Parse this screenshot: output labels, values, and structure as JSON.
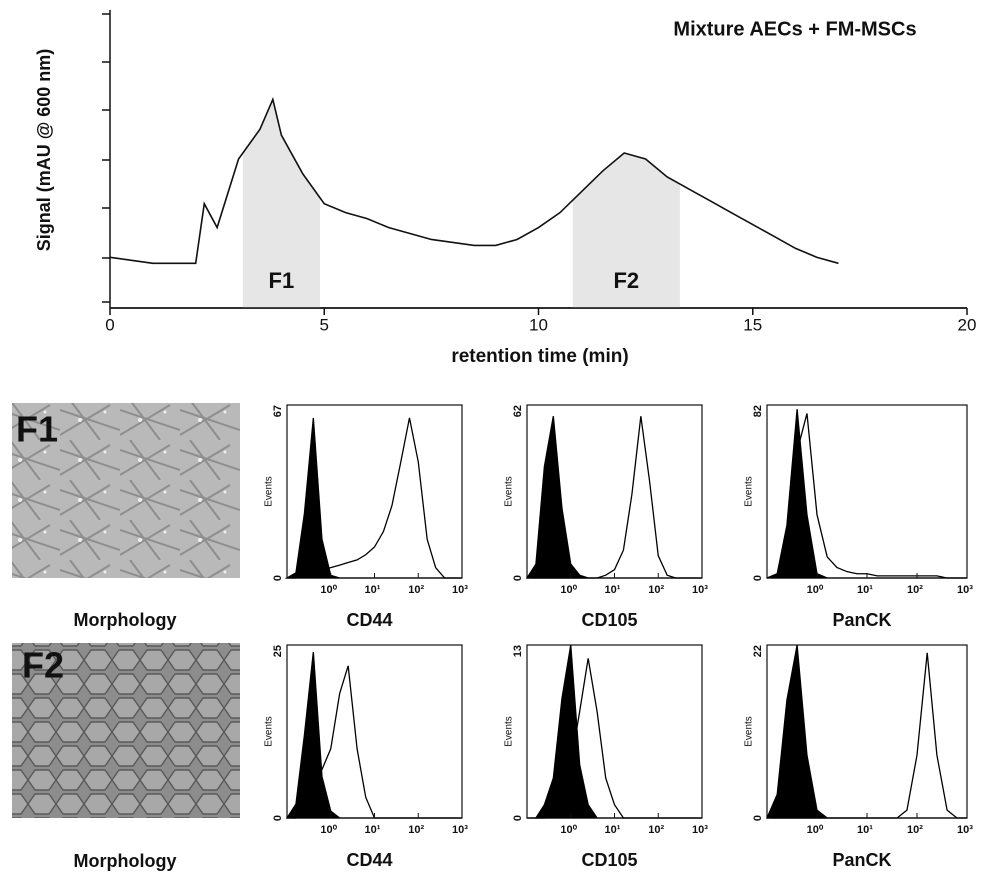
{
  "chart_data": [
    {
      "type": "line",
      "title": "Mixture AECs + FM-MSCs",
      "x_label": "retention time (min)",
      "y_label": "Signal (mAU @ 600 nm)",
      "color": "#111111",
      "x": [
        0,
        0.5,
        1,
        1.5,
        2,
        2.2,
        2.5,
        3,
        3.5,
        3.8,
        4,
        4.5,
        5,
        5.5,
        6,
        6.5,
        7,
        7.5,
        8,
        8.5,
        9,
        9.5,
        10,
        10.5,
        11,
        11.5,
        12,
        12.5,
        13,
        13.5,
        14,
        14.5,
        15,
        15.5,
        16,
        16.5,
        17
      ],
      "values": [
        17,
        16,
        15,
        15,
        15,
        35,
        27,
        50,
        60,
        70,
        58,
        45,
        35,
        32,
        30,
        27,
        25,
        23,
        22,
        21,
        21,
        23,
        27,
        32,
        39,
        46,
        52,
        50,
        44,
        40,
        36,
        32,
        28,
        24,
        20,
        17,
        15
      ],
      "xlim": [
        0,
        20
      ],
      "xticks": [
        0,
        5,
        10,
        15,
        20
      ],
      "ylim": [
        0,
        100
      ],
      "regions": [
        {
          "label": "F1",
          "range": [
            3.1,
            4.9
          ]
        },
        {
          "label": "F2",
          "range": [
            10.8,
            13.3
          ]
        }
      ]
    },
    {
      "type": "flow_histogram",
      "title": "CD44",
      "y_label": "Events",
      "log_x": true,
      "xlim": [
        0.1,
        1000
      ],
      "xticks": [
        {
          "value": 1,
          "label": "10⁰"
        },
        {
          "value": 10,
          "label": "10¹"
        },
        {
          "value": 100,
          "label": "10²"
        },
        {
          "value": 1000,
          "label": "10³"
        }
      ],
      "ylim": [
        0,
        67
      ],
      "yticks": [
        0,
        67
      ],
      "x": [
        0.1,
        0.16,
        0.25,
        0.4,
        0.63,
        1,
        1.6,
        2.5,
        4,
        6.3,
        10,
        16,
        25,
        40,
        63,
        100,
        160,
        250,
        400,
        630,
        1000
      ],
      "series": [
        {
          "color": "#000000",
          "fill": true,
          "values": [
            0,
            2,
            25,
            62,
            15,
            1,
            0,
            0,
            0,
            0,
            0,
            0,
            0,
            0,
            0,
            0,
            0,
            0,
            0,
            0,
            0
          ]
        },
        {
          "color": "#000000",
          "fill": false,
          "values": [
            0,
            0,
            1,
            2,
            3,
            4,
            5,
            6,
            7,
            9,
            12,
            18,
            28,
            45,
            62,
            45,
            15,
            4,
            0,
            0,
            0
          ]
        }
      ]
    },
    {
      "type": "flow_histogram",
      "title": "CD105",
      "y_label": "Events",
      "log_x": true,
      "xlim": [
        0.1,
        1000
      ],
      "xticks": [
        {
          "value": 1,
          "label": "10⁰"
        },
        {
          "value": 10,
          "label": "10¹"
        },
        {
          "value": 100,
          "label": "10²"
        },
        {
          "value": 1000,
          "label": "10³"
        }
      ],
      "ylim": [
        0,
        62
      ],
      "yticks": [
        0,
        62
      ],
      "x": [
        0.1,
        0.16,
        0.25,
        0.4,
        0.63,
        1,
        1.6,
        2.5,
        4,
        6.3,
        10,
        16,
        25,
        40,
        63,
        100,
        160,
        250,
        400,
        630,
        1000
      ],
      "series": [
        {
          "color": "#000000",
          "fill": true,
          "values": [
            0,
            5,
            40,
            58,
            25,
            5,
            1,
            0,
            0,
            0,
            0,
            0,
            0,
            0,
            0,
            0,
            0,
            0,
            0,
            0,
            0
          ]
        },
        {
          "color": "#000000",
          "fill": false,
          "values": [
            0,
            0,
            0,
            0,
            0,
            0,
            0,
            0,
            0,
            1,
            3,
            10,
            30,
            58,
            35,
            8,
            1,
            0,
            0,
            0,
            0
          ]
        }
      ]
    },
    {
      "type": "flow_histogram",
      "title": "PanCK",
      "y_label": "Events",
      "log_x": true,
      "xlim": [
        0.1,
        1000
      ],
      "xticks": [
        {
          "value": 1,
          "label": "10⁰"
        },
        {
          "value": 10,
          "label": "10¹"
        },
        {
          "value": 100,
          "label": "10²"
        },
        {
          "value": 1000,
          "label": "10³"
        }
      ],
      "ylim": [
        0,
        82
      ],
      "yticks": [
        0,
        82
      ],
      "x": [
        0.1,
        0.16,
        0.25,
        0.4,
        0.63,
        1,
        1.6,
        2.5,
        4,
        6.3,
        10,
        16,
        25,
        40,
        63,
        100,
        160,
        250,
        400,
        630,
        1000
      ],
      "series": [
        {
          "color": "#000000",
          "fill": true,
          "values": [
            0,
            2,
            25,
            80,
            30,
            2,
            0,
            0,
            0,
            0,
            0,
            0,
            0,
            0,
            0,
            0,
            0,
            0,
            0,
            0,
            0
          ]
        },
        {
          "color": "#000000",
          "fill": false,
          "values": [
            0,
            1,
            10,
            60,
            78,
            30,
            10,
            5,
            3,
            2,
            2,
            1,
            1,
            1,
            1,
            1,
            1,
            1,
            0,
            0,
            0
          ]
        }
      ]
    },
    {
      "type": "flow_histogram",
      "title": "CD44",
      "y_label": "Events",
      "log_x": true,
      "xlim": [
        0.1,
        1000
      ],
      "xticks": [
        {
          "value": 1,
          "label": "10⁰"
        },
        {
          "value": 10,
          "label": "10¹"
        },
        {
          "value": 100,
          "label": "10²"
        },
        {
          "value": 1000,
          "label": "10³"
        }
      ],
      "ylim": [
        0,
        25
      ],
      "yticks": [
        0,
        25
      ],
      "x": [
        0.1,
        0.16,
        0.25,
        0.4,
        0.63,
        1,
        1.6,
        2.5,
        4,
        6.3,
        10,
        16,
        25,
        40,
        63,
        100,
        160,
        250,
        400,
        630,
        1000
      ],
      "series": [
        {
          "color": "#000000",
          "fill": true,
          "values": [
            0,
            2,
            12,
            24,
            6,
            1,
            0,
            0,
            0,
            0,
            0,
            0,
            0,
            0,
            0,
            0,
            0,
            0,
            0,
            0,
            0
          ]
        },
        {
          "color": "#000000",
          "fill": false,
          "values": [
            0,
            0,
            2,
            5,
            7,
            10,
            18,
            22,
            10,
            3,
            0,
            0,
            0,
            0,
            0,
            0,
            0,
            0,
            0,
            0,
            0
          ]
        }
      ]
    },
    {
      "type": "flow_histogram",
      "title": "CD105",
      "y_label": "Events",
      "log_x": true,
      "xlim": [
        0.1,
        1000
      ],
      "xticks": [
        {
          "value": 1,
          "label": "10⁰"
        },
        {
          "value": 10,
          "label": "10¹"
        },
        {
          "value": 100,
          "label": "10²"
        },
        {
          "value": 1000,
          "label": "10³"
        }
      ],
      "ylim": [
        0,
        13
      ],
      "yticks": [
        0,
        13
      ],
      "x": [
        0.1,
        0.16,
        0.25,
        0.4,
        0.63,
        1,
        1.6,
        2.5,
        4,
        6.3,
        10,
        16,
        25,
        40,
        63,
        100,
        160,
        250,
        400,
        630,
        1000
      ],
      "series": [
        {
          "color": "#000000",
          "fill": true,
          "values": [
            0,
            0,
            1,
            3,
            9,
            13,
            4,
            1,
            0,
            0,
            0,
            0,
            0,
            0,
            0,
            0,
            0,
            0,
            0,
            0,
            0
          ]
        },
        {
          "color": "#000000",
          "fill": false,
          "values": [
            0,
            0,
            0,
            1,
            2,
            4,
            8,
            12,
            8,
            3,
            1,
            0,
            0,
            0,
            0,
            0,
            0,
            0,
            0,
            0,
            0
          ]
        }
      ]
    },
    {
      "type": "flow_histogram",
      "title": "PanCK",
      "y_label": "Events",
      "log_x": true,
      "xlim": [
        0.1,
        1000
      ],
      "xticks": [
        {
          "value": 1,
          "label": "10⁰"
        },
        {
          "value": 10,
          "label": "10¹"
        },
        {
          "value": 100,
          "label": "10²"
        },
        {
          "value": 1000,
          "label": "10³"
        }
      ],
      "ylim": [
        0,
        22
      ],
      "yticks": [
        0,
        22
      ],
      "x": [
        0.1,
        0.16,
        0.25,
        0.4,
        0.63,
        1,
        1.6,
        2.5,
        4,
        6.3,
        10,
        16,
        25,
        40,
        63,
        100,
        160,
        250,
        400,
        630,
        1000
      ],
      "series": [
        {
          "color": "#000000",
          "fill": true,
          "values": [
            0,
            3,
            15,
            22,
            8,
            1,
            0,
            0,
            0,
            0,
            0,
            0,
            0,
            0,
            0,
            0,
            0,
            0,
            0,
            0,
            0
          ]
        },
        {
          "color": "#000000",
          "fill": false,
          "values": [
            0,
            0,
            0,
            0,
            0,
            0,
            0,
            0,
            0,
            0,
            0,
            0,
            0,
            0,
            1,
            8,
            21,
            8,
            1,
            0,
            0
          ]
        }
      ]
    }
  ],
  "panels": [
    {
      "label": "F1",
      "caption": "Morphology"
    },
    {
      "label": "F2",
      "caption": "Morphology"
    }
  ]
}
